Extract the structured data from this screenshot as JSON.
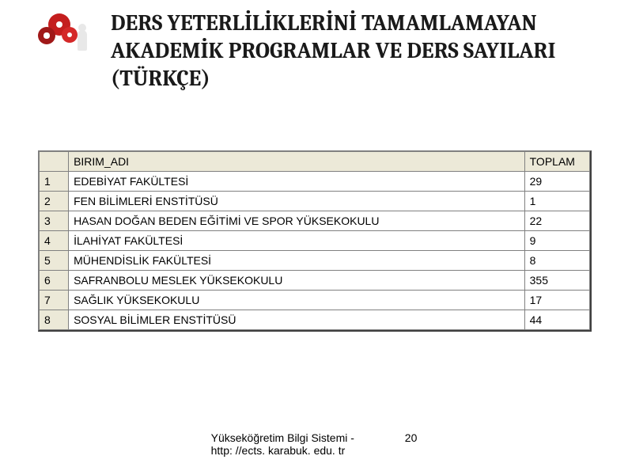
{
  "title": "DERS YETERLİLİKLERİNİ TAMAMLAMAYAN AKADEMİK PROGRAMLAR VE DERS SAYILARI (TÜRKÇE)",
  "table": {
    "columns": [
      "",
      "BIRIM_ADI",
      "TOPLAM"
    ],
    "rows": [
      {
        "n": "1",
        "name": "EDEBİYAT FAKÜLTESİ",
        "total": "29"
      },
      {
        "n": "2",
        "name": "FEN BİLİMLERİ ENSTİTÜSÜ",
        "total": "1"
      },
      {
        "n": "3",
        "name": "HASAN DOĞAN BEDEN EĞİTİMİ VE SPOR YÜKSEKOKULU",
        "total": "22"
      },
      {
        "n": "4",
        "name": "İLAHİYAT FAKÜLTESİ",
        "total": "9"
      },
      {
        "n": "5",
        "name": "MÜHENDİSLİK FAKÜLTESİ",
        "total": "8"
      },
      {
        "n": "6",
        "name": "SAFRANBOLU MESLEK YÜKSEKOKULU",
        "total": "355"
      },
      {
        "n": "7",
        "name": "SAĞLIK YÜKSEKOKULU",
        "total": "17"
      },
      {
        "n": "8",
        "name": "SOSYAL BİLİMLER ENSTİTÜSÜ",
        "total": "44"
      }
    ],
    "header_bg": "#ece9d8",
    "cell_bg": "#ffffff",
    "border_color": "#808080",
    "font_size": 14
  },
  "footer": {
    "text_line1": "Yükseköğretim Bilgi Sistemi -",
    "text_line2": "http: //ects. karabuk. edu. tr",
    "page": "20"
  },
  "colors": {
    "background": "#ffffff",
    "title_color": "#1a1a1a",
    "gear_red": "#c41e1e"
  },
  "typography": {
    "title_font": "Cambria, serif",
    "title_size": 28,
    "title_weight": 600,
    "table_font": "Tahoma, sans-serif",
    "table_size": 14,
    "footer_size": 14
  }
}
